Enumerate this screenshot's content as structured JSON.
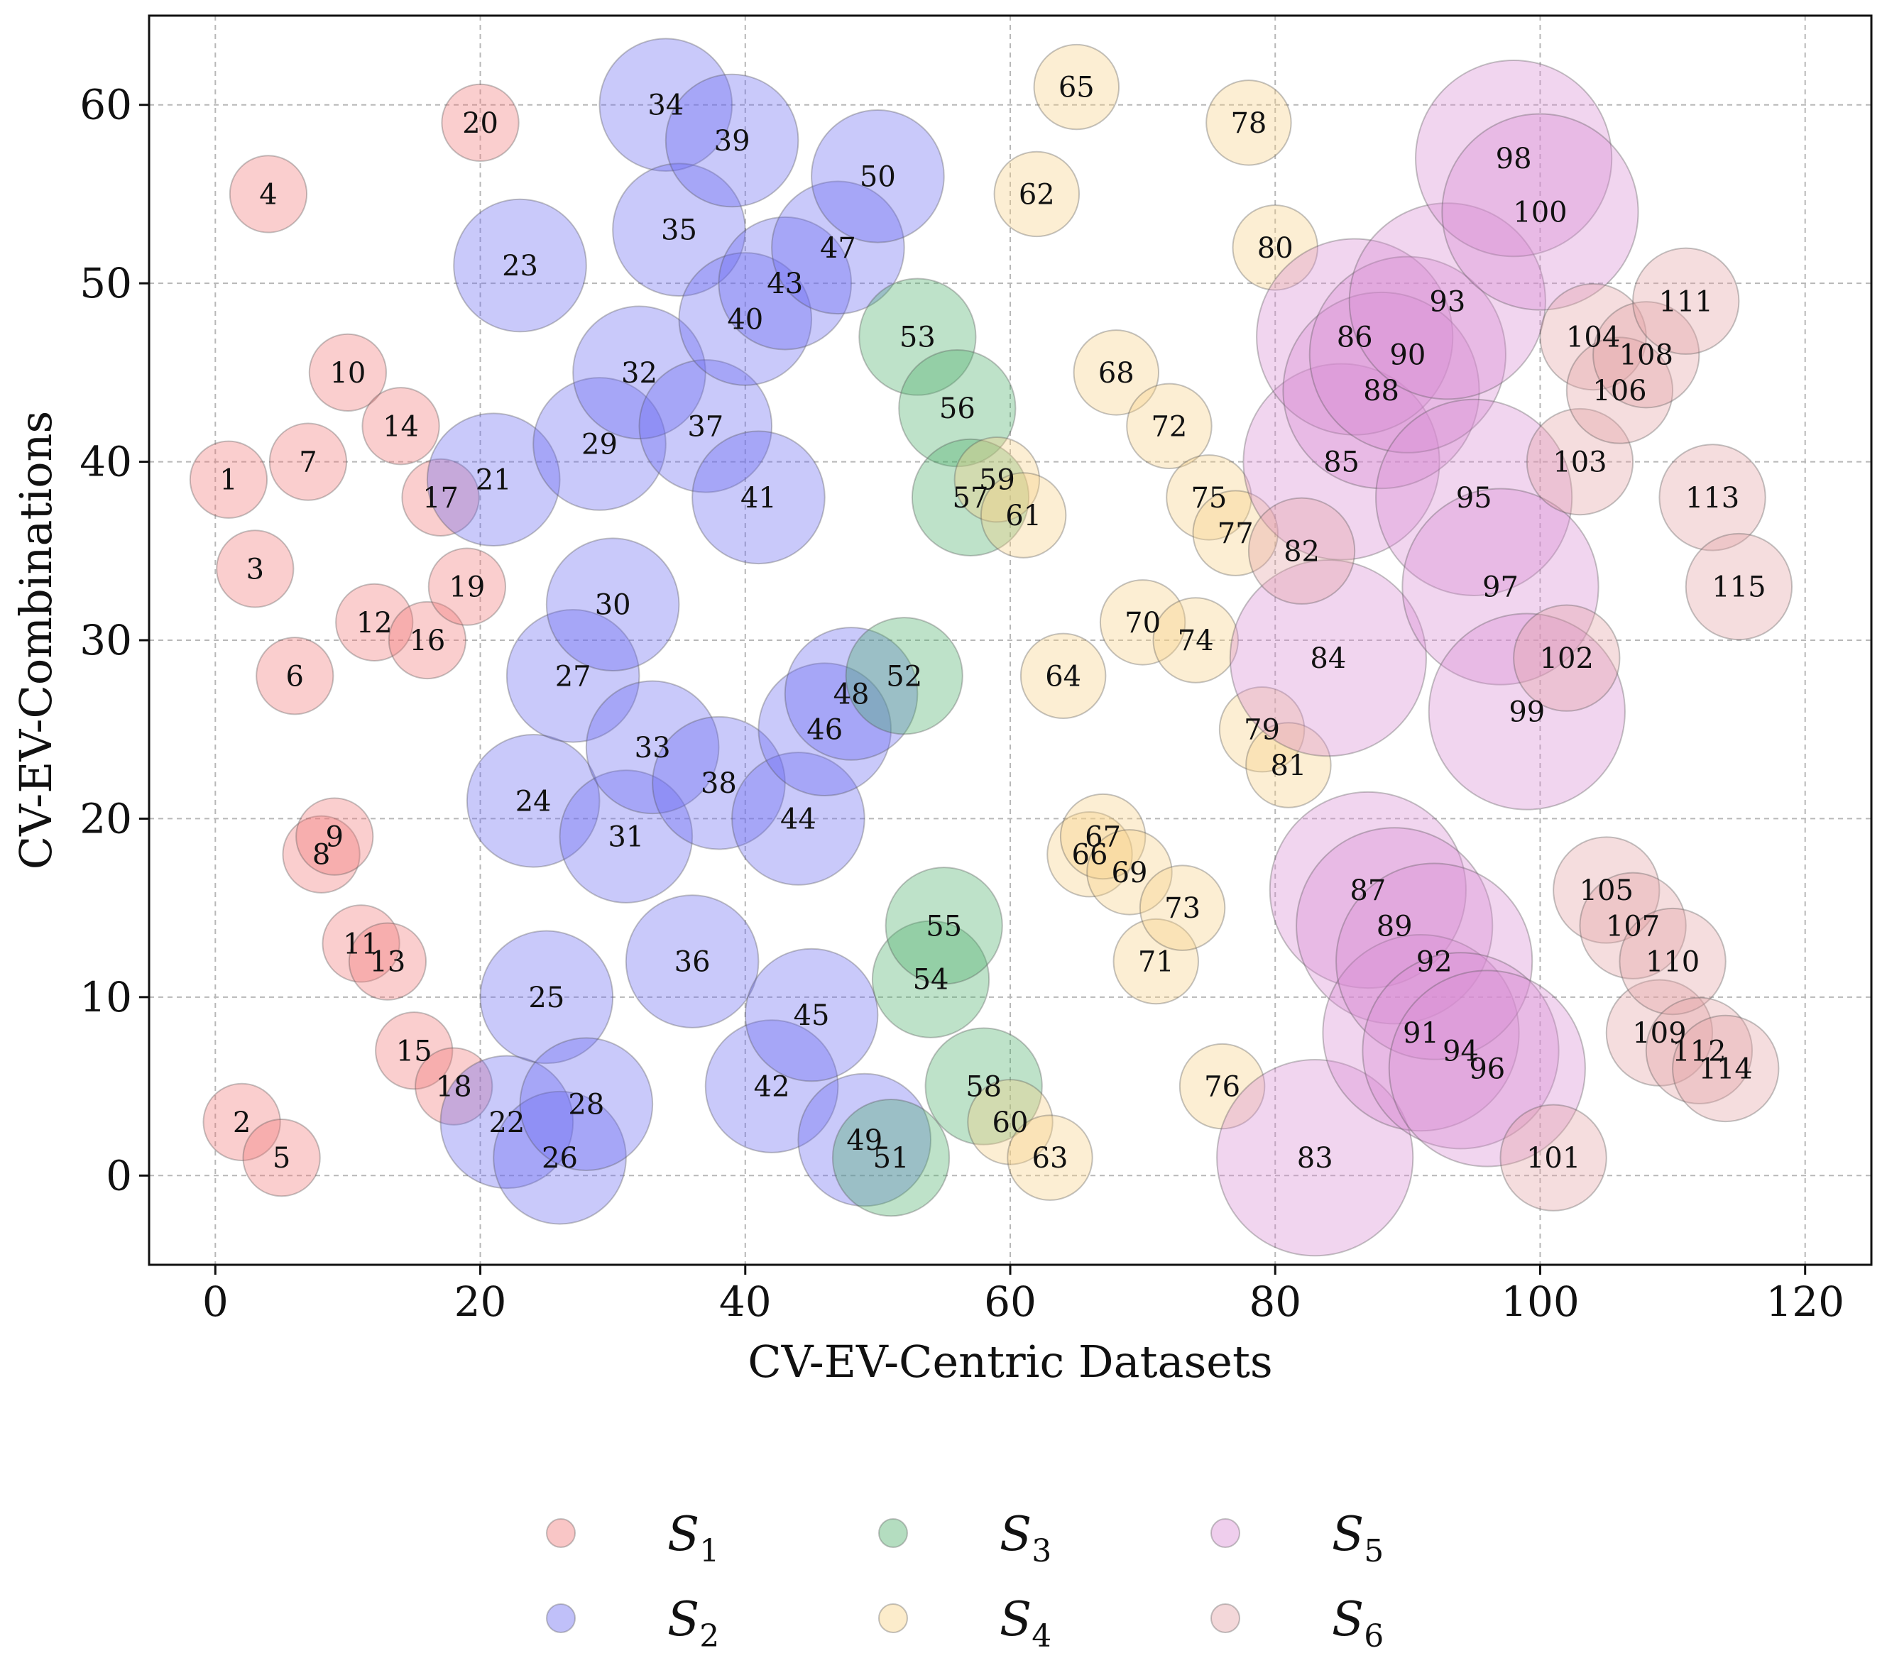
{
  "chart_data": {
    "type": "scatter",
    "xlabel": "CV-EV-Centric Datasets",
    "ylabel": "CV-EV-Combinations",
    "xlim": [
      -5,
      125
    ],
    "ylim": [
      -5,
      65
    ],
    "xticks": [
      0,
      20,
      40,
      60,
      80,
      100,
      120
    ],
    "yticks": [
      0,
      10,
      20,
      30,
      40,
      50,
      60
    ],
    "grid": true,
    "legend_placement": "bottom-center",
    "series": [
      {
        "name": "S",
        "sub": "1",
        "color": "#f07878",
        "size": 2.9,
        "points": [
          {
            "label": "1",
            "x": 1,
            "y": 39
          },
          {
            "label": "2",
            "x": 2,
            "y": 3
          },
          {
            "label": "3",
            "x": 3,
            "y": 34
          },
          {
            "label": "4",
            "x": 4,
            "y": 55
          },
          {
            "label": "5",
            "x": 5,
            "y": 1
          },
          {
            "label": "6",
            "x": 6,
            "y": 28
          },
          {
            "label": "7",
            "x": 7,
            "y": 40
          },
          {
            "label": "8",
            "x": 8,
            "y": 18
          },
          {
            "label": "9",
            "x": 9,
            "y": 19
          },
          {
            "label": "10",
            "x": 10,
            "y": 45
          },
          {
            "label": "11",
            "x": 11,
            "y": 13
          },
          {
            "label": "12",
            "x": 12,
            "y": 31
          },
          {
            "label": "13",
            "x": 13,
            "y": 12
          },
          {
            "label": "14",
            "x": 14,
            "y": 42
          },
          {
            "label": "15",
            "x": 15,
            "y": 7
          },
          {
            "label": "16",
            "x": 16,
            "y": 30
          },
          {
            "label": "17",
            "x": 17,
            "y": 38
          },
          {
            "label": "18",
            "x": 18,
            "y": 5
          },
          {
            "label": "19",
            "x": 19,
            "y": 33
          },
          {
            "label": "20",
            "x": 20,
            "y": 59
          }
        ]
      },
      {
        "name": "S",
        "sub": "2",
        "color": "#6a6af0",
        "size": 5.0,
        "points": [
          {
            "label": "21",
            "x": 21,
            "y": 39
          },
          {
            "label": "22",
            "x": 22,
            "y": 3
          },
          {
            "label": "23",
            "x": 23,
            "y": 51
          },
          {
            "label": "24",
            "x": 24,
            "y": 21
          },
          {
            "label": "25",
            "x": 25,
            "y": 10
          },
          {
            "label": "26",
            "x": 26,
            "y": 1
          },
          {
            "label": "27",
            "x": 27,
            "y": 28
          },
          {
            "label": "28",
            "x": 28,
            "y": 4
          },
          {
            "label": "29",
            "x": 29,
            "y": 41
          },
          {
            "label": "30",
            "x": 30,
            "y": 32
          },
          {
            "label": "31",
            "x": 31,
            "y": 19
          },
          {
            "label": "32",
            "x": 32,
            "y": 45
          },
          {
            "label": "33",
            "x": 33,
            "y": 24
          },
          {
            "label": "34",
            "x": 34,
            "y": 60
          },
          {
            "label": "35",
            "x": 35,
            "y": 53
          },
          {
            "label": "36",
            "x": 36,
            "y": 12
          },
          {
            "label": "37",
            "x": 37,
            "y": 42
          },
          {
            "label": "38",
            "x": 38,
            "y": 22
          },
          {
            "label": "39",
            "x": 39,
            "y": 58
          },
          {
            "label": "40",
            "x": 40,
            "y": 48
          },
          {
            "label": "41",
            "x": 41,
            "y": 38
          },
          {
            "label": "42",
            "x": 42,
            "y": 5
          },
          {
            "label": "43",
            "x": 43,
            "y": 50
          },
          {
            "label": "44",
            "x": 44,
            "y": 20
          },
          {
            "label": "45",
            "x": 45,
            "y": 9
          },
          {
            "label": "46",
            "x": 46,
            "y": 25
          },
          {
            "label": "47",
            "x": 47,
            "y": 52
          },
          {
            "label": "48",
            "x": 48,
            "y": 27
          },
          {
            "label": "49",
            "x": 49,
            "y": 2
          },
          {
            "label": "50",
            "x": 50,
            "y": 56
          }
        ]
      },
      {
        "name": "S",
        "sub": "3",
        "color": "#4caf6a",
        "size": 4.4,
        "points": [
          {
            "label": "51",
            "x": 51,
            "y": 1
          },
          {
            "label": "52",
            "x": 52,
            "y": 28
          },
          {
            "label": "53",
            "x": 53,
            "y": 47
          },
          {
            "label": "54",
            "x": 54,
            "y": 11
          },
          {
            "label": "55",
            "x": 55,
            "y": 14
          },
          {
            "label": "56",
            "x": 56,
            "y": 43
          },
          {
            "label": "57",
            "x": 57,
            "y": 38
          },
          {
            "label": "58",
            "x": 58,
            "y": 5
          }
        ]
      },
      {
        "name": "S",
        "sub": "4",
        "color": "#f8d184",
        "size": 3.2,
        "points": [
          {
            "label": "59",
            "x": 59,
            "y": 39
          },
          {
            "label": "60",
            "x": 60,
            "y": 3
          },
          {
            "label": "61",
            "x": 61,
            "y": 37
          },
          {
            "label": "62",
            "x": 62,
            "y": 55
          },
          {
            "label": "63",
            "x": 63,
            "y": 1
          },
          {
            "label": "64",
            "x": 64,
            "y": 28
          },
          {
            "label": "65",
            "x": 65,
            "y": 61
          },
          {
            "label": "66",
            "x": 66,
            "y": 18
          },
          {
            "label": "67",
            "x": 67,
            "y": 19
          },
          {
            "label": "68",
            "x": 68,
            "y": 45
          },
          {
            "label": "69",
            "x": 69,
            "y": 17
          },
          {
            "label": "70",
            "x": 70,
            "y": 31
          },
          {
            "label": "71",
            "x": 71,
            "y": 12
          },
          {
            "label": "72",
            "x": 72,
            "y": 42
          },
          {
            "label": "73",
            "x": 73,
            "y": 15
          },
          {
            "label": "74",
            "x": 74,
            "y": 30
          },
          {
            "label": "75",
            "x": 75,
            "y": 38
          },
          {
            "label": "76",
            "x": 76,
            "y": 5
          },
          {
            "label": "77",
            "x": 77,
            "y": 36
          },
          {
            "label": "78",
            "x": 78,
            "y": 59
          },
          {
            "label": "79",
            "x": 79,
            "y": 25
          },
          {
            "label": "80",
            "x": 80,
            "y": 52
          },
          {
            "label": "81",
            "x": 81,
            "y": 23
          }
        ]
      },
      {
        "name": "S",
        "sub": "5",
        "color": "#d98ad4",
        "size": 7.4,
        "points": [
          {
            "label": "83",
            "x": 83,
            "y": 1
          },
          {
            "label": "84",
            "x": 84,
            "y": 29
          },
          {
            "label": "85",
            "x": 85,
            "y": 40
          },
          {
            "label": "86",
            "x": 86,
            "y": 47
          },
          {
            "label": "87",
            "x": 87,
            "y": 16
          },
          {
            "label": "88",
            "x": 88,
            "y": 44
          },
          {
            "label": "89",
            "x": 89,
            "y": 14
          },
          {
            "label": "90",
            "x": 90,
            "y": 46
          },
          {
            "label": "91",
            "x": 91,
            "y": 8
          },
          {
            "label": "92",
            "x": 92,
            "y": 12
          },
          {
            "label": "93",
            "x": 93,
            "y": 49
          },
          {
            "label": "94",
            "x": 94,
            "y": 7
          },
          {
            "label": "95",
            "x": 95,
            "y": 38
          },
          {
            "label": "96",
            "x": 96,
            "y": 6
          },
          {
            "label": "97",
            "x": 97,
            "y": 33
          },
          {
            "label": "98",
            "x": 98,
            "y": 57
          },
          {
            "label": "99",
            "x": 99,
            "y": 26
          },
          {
            "label": "100",
            "x": 100,
            "y": 54
          }
        ]
      },
      {
        "name": "S",
        "sub": "6",
        "color": "#e2a0a4",
        "size": 4.0,
        "points": [
          {
            "label": "82",
            "x": 82,
            "y": 35
          },
          {
            "label": "101",
            "x": 101,
            "y": 1
          },
          {
            "label": "102",
            "x": 102,
            "y": 29
          },
          {
            "label": "103",
            "x": 103,
            "y": 40
          },
          {
            "label": "104",
            "x": 104,
            "y": 47
          },
          {
            "label": "105",
            "x": 105,
            "y": 16
          },
          {
            "label": "106",
            "x": 106,
            "y": 44
          },
          {
            "label": "107",
            "x": 107,
            "y": 14
          },
          {
            "label": "108",
            "x": 108,
            "y": 46
          },
          {
            "label": "109",
            "x": 109,
            "y": 8
          },
          {
            "label": "110",
            "x": 110,
            "y": 12
          },
          {
            "label": "111",
            "x": 111,
            "y": 49
          },
          {
            "label": "112",
            "x": 112,
            "y": 7
          },
          {
            "label": "113",
            "x": 113,
            "y": 38
          },
          {
            "label": "114",
            "x": 114,
            "y": 6
          },
          {
            "label": "115",
            "x": 115,
            "y": 33
          }
        ]
      }
    ]
  }
}
